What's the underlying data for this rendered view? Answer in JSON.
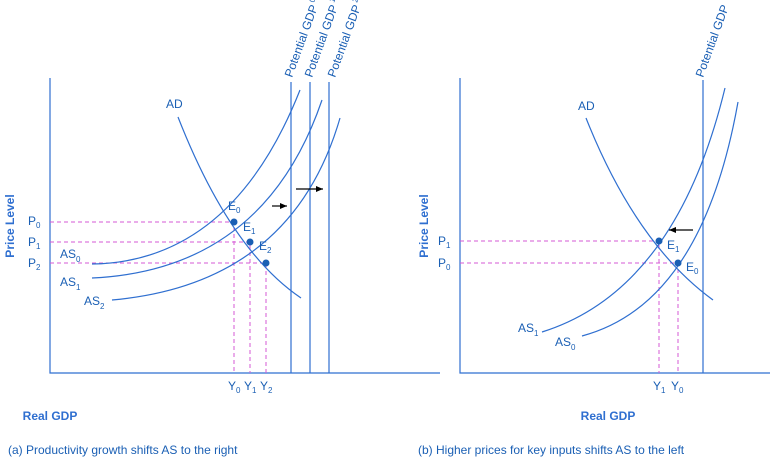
{
  "panel_a": {
    "caption": "(a) Productivity growth shifts AS to the right",
    "xlabel": "Real GDP",
    "ylabel": "Price Level",
    "ad_label": "AD",
    "as_labels": [
      {
        "main": "AS",
        "sub": "0"
      },
      {
        "main": "AS",
        "sub": "1"
      },
      {
        "main": "AS",
        "sub": "2"
      }
    ],
    "potential_labels": [
      {
        "main": "Potential GDP",
        "sub": "0"
      },
      {
        "main": "Potential GDP",
        "sub": "1"
      },
      {
        "main": "Potential GDP",
        "sub": "2"
      }
    ],
    "equilibria": [
      {
        "main": "E",
        "sub": "0"
      },
      {
        "main": "E",
        "sub": "1"
      },
      {
        "main": "E",
        "sub": "2"
      }
    ],
    "price_ticks": [
      {
        "main": "P",
        "sub": "0"
      },
      {
        "main": "P",
        "sub": "1"
      },
      {
        "main": "P",
        "sub": "2"
      }
    ],
    "output_ticks": [
      {
        "main": "Y",
        "sub": "0"
      },
      {
        "main": "Y",
        "sub": "1"
      },
      {
        "main": "Y",
        "sub": "2"
      }
    ]
  },
  "panel_b": {
    "caption": "(b) Higher prices for key inputs shifts AS to the left",
    "xlabel": "Real GDP",
    "ylabel": "Price Level",
    "ad_label": "AD",
    "potential_label": "Potential GDP",
    "as_labels": [
      {
        "main": "AS",
        "sub": "1"
      },
      {
        "main": "AS",
        "sub": "0"
      }
    ],
    "equilibria": [
      {
        "main": "E",
        "sub": "1"
      },
      {
        "main": "E",
        "sub": "0"
      }
    ],
    "price_ticks": [
      {
        "main": "P",
        "sub": "1"
      },
      {
        "main": "P",
        "sub": "0"
      }
    ],
    "output_ticks": [
      {
        "main": "Y",
        "sub": "1"
      },
      {
        "main": "Y",
        "sub": "0"
      }
    ]
  },
  "colors": {
    "curves": "#2f6fd0",
    "guides": "#d65ad6",
    "arrows": "#000000"
  }
}
